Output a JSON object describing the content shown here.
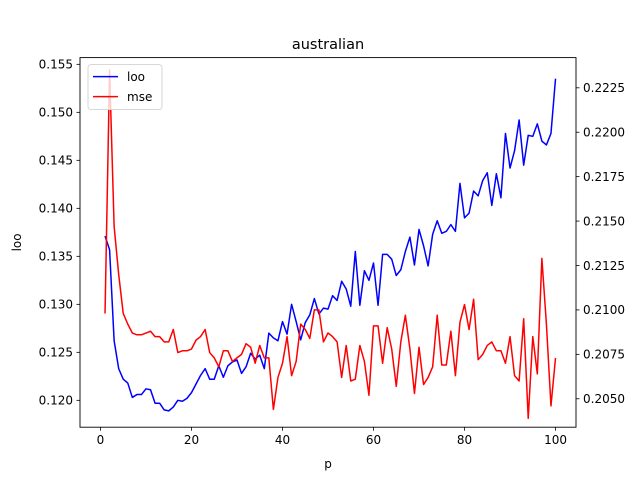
{
  "chart_data": {
    "type": "line",
    "title": "australian",
    "xlabel": "p",
    "ylabel": "loo",
    "y2label": "",
    "xlim": [
      -4.5,
      104.5
    ],
    "ylim": [
      0.1172,
      0.1557
    ],
    "y2lim": [
      0.2034,
      0.2242
    ],
    "xticks": [
      0,
      20,
      40,
      60,
      80,
      100
    ],
    "yticks": [
      0.12,
      0.125,
      0.13,
      0.135,
      0.14,
      0.145,
      0.15,
      0.155
    ],
    "y2ticks": [
      0.205,
      0.2075,
      0.21,
      0.2125,
      0.215,
      0.2175,
      0.22,
      0.2225
    ],
    "legend_position": "top-left",
    "grid": false,
    "series": [
      {
        "name": "loo",
        "color": "#0000ff",
        "axis": "left",
        "x": [
          1,
          2,
          3,
          4,
          5,
          6,
          7,
          8,
          9,
          10,
          11,
          12,
          13,
          14,
          15,
          16,
          17,
          18,
          19,
          20,
          21,
          22,
          23,
          24,
          25,
          26,
          27,
          28,
          29,
          30,
          31,
          32,
          33,
          34,
          35,
          36,
          37,
          38,
          39,
          40,
          41,
          42,
          43,
          44,
          45,
          46,
          47,
          48,
          49,
          50,
          51,
          52,
          53,
          54,
          55,
          56,
          57,
          58,
          59,
          60,
          61,
          62,
          63,
          64,
          65,
          66,
          67,
          68,
          69,
          70,
          71,
          72,
          73,
          74,
          75,
          76,
          77,
          78,
          79,
          80,
          81,
          82,
          83,
          84,
          85,
          86,
          87,
          88,
          89,
          90,
          91,
          92,
          93,
          94,
          95,
          96,
          97,
          98,
          99,
          100
        ],
        "values": [
          0.1371,
          0.1357,
          0.1262,
          0.1233,
          0.1222,
          0.1218,
          0.1203,
          0.1206,
          0.1206,
          0.1212,
          0.1211,
          0.1197,
          0.1197,
          0.119,
          0.1189,
          0.1193,
          0.12,
          0.1199,
          0.1202,
          0.1208,
          0.1217,
          0.1226,
          0.1233,
          0.1222,
          0.1222,
          0.1236,
          0.1224,
          0.1236,
          0.124,
          0.1242,
          0.1228,
          0.1235,
          0.1249,
          0.1243,
          0.1247,
          0.1233,
          0.127,
          0.1265,
          0.1262,
          0.1282,
          0.1269,
          0.13,
          0.1282,
          0.1263,
          0.1281,
          0.1289,
          0.1306,
          0.129,
          0.1296,
          0.1295,
          0.1309,
          0.1304,
          0.1324,
          0.1316,
          0.1298,
          0.1355,
          0.1299,
          0.1335,
          0.1325,
          0.1343,
          0.1299,
          0.1352,
          0.1352,
          0.1347,
          0.133,
          0.1336,
          0.1355,
          0.137,
          0.1341,
          0.1378,
          0.1361,
          0.134,
          0.1373,
          0.1387,
          0.1374,
          0.1376,
          0.1383,
          0.1376,
          0.1426,
          0.139,
          0.1395,
          0.1418,
          0.1413,
          0.1429,
          0.1437,
          0.1403,
          0.1436,
          0.1411,
          0.1478,
          0.1442,
          0.146,
          0.1492,
          0.1445,
          0.1476,
          0.1475,
          0.1488,
          0.147,
          0.1466,
          0.1478,
          0.1535
        ]
      },
      {
        "name": "mse",
        "color": "#ff0000",
        "axis": "right",
        "x": [
          1,
          2,
          3,
          4,
          5,
          6,
          7,
          8,
          9,
          10,
          11,
          12,
          13,
          14,
          15,
          16,
          17,
          18,
          19,
          20,
          21,
          22,
          23,
          24,
          25,
          26,
          27,
          28,
          29,
          30,
          31,
          32,
          33,
          34,
          35,
          36,
          37,
          38,
          39,
          40,
          41,
          42,
          43,
          44,
          45,
          46,
          47,
          48,
          49,
          50,
          51,
          52,
          53,
          54,
          55,
          56,
          57,
          58,
          59,
          60,
          61,
          62,
          63,
          64,
          65,
          66,
          67,
          68,
          69,
          70,
          71,
          72,
          73,
          74,
          75,
          76,
          77,
          78,
          79,
          80,
          81,
          82,
          83,
          84,
          85,
          86,
          87,
          88,
          89,
          90,
          91,
          92,
          93,
          94,
          95,
          96,
          97,
          98,
          99,
          100
        ],
        "values": [
          0.2098,
          0.2235,
          0.2147,
          0.212,
          0.2098,
          0.2092,
          0.2087,
          0.2086,
          0.2086,
          0.2087,
          0.2088,
          0.2085,
          0.2085,
          0.2082,
          0.2082,
          0.2089,
          0.2076,
          0.2077,
          0.2077,
          0.2078,
          0.2083,
          0.2085,
          0.2089,
          0.2076,
          0.2073,
          0.2068,
          0.2077,
          0.2077,
          0.2071,
          0.2073,
          0.2075,
          0.2081,
          0.2079,
          0.207,
          0.208,
          0.2073,
          0.2073,
          0.2044,
          0.2062,
          0.207,
          0.2085,
          0.2063,
          0.2071,
          0.2092,
          0.2089,
          0.2084,
          0.21,
          0.21,
          0.2082,
          0.2087,
          0.2085,
          0.2082,
          0.2062,
          0.208,
          0.206,
          0.2061,
          0.208,
          0.2071,
          0.2052,
          0.2091,
          0.2091,
          0.207,
          0.209,
          0.2078,
          0.2057,
          0.2082,
          0.2097,
          0.2078,
          0.2053,
          0.2079,
          0.2058,
          0.2062,
          0.2068,
          0.2097,
          0.2069,
          0.2069,
          0.2088,
          0.2063,
          0.2093,
          0.2103,
          0.2089,
          0.2106,
          0.2072,
          0.2075,
          0.208,
          0.2082,
          0.2077,
          0.2077,
          0.207,
          0.2085,
          0.2063,
          0.206,
          0.2095,
          0.2039,
          0.2085,
          0.2064,
          0.2129,
          0.2092,
          0.2046,
          0.2073
        ]
      }
    ]
  }
}
